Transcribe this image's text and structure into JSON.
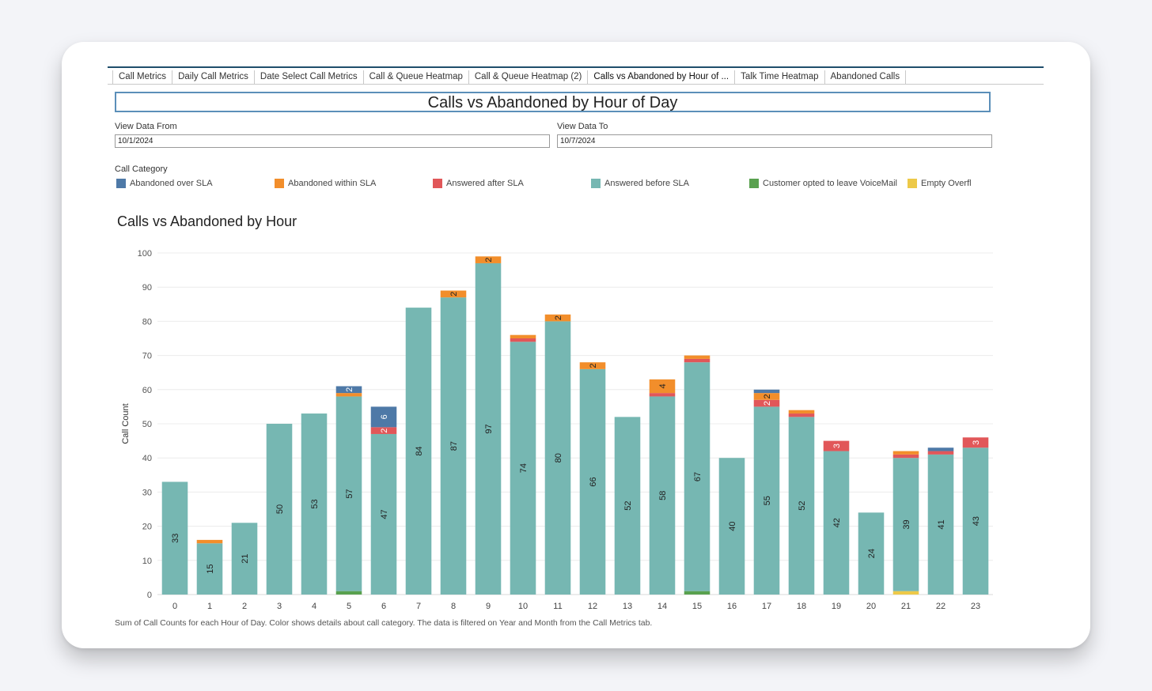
{
  "tabs": [
    {
      "label": "Call Metrics",
      "active": false
    },
    {
      "label": "Daily Call Metrics",
      "active": false
    },
    {
      "label": "Date Select Call Metrics",
      "active": false
    },
    {
      "label": "Call & Queue Heatmap",
      "active": false
    },
    {
      "label": "Call & Queue Heatmap (2)",
      "active": false
    },
    {
      "label": "Calls vs Abandoned by Hour of ...",
      "active": true
    },
    {
      "label": "Talk Time Heatmap",
      "active": false
    },
    {
      "label": "Abandoned Calls",
      "active": false
    }
  ],
  "dashboard_title": "Calls vs Abandoned by Hour of Day",
  "filters": {
    "from_label": "View Data From",
    "from_value": "10/1/2024",
    "to_label": "View Data To",
    "to_value": "10/7/2024"
  },
  "legend": {
    "title": "Call Category",
    "items": [
      {
        "label": "Abandoned over SLA",
        "color": "#4e79a7"
      },
      {
        "label": "Abandoned within SLA",
        "color": "#f28e2b"
      },
      {
        "label": "Answered after SLA",
        "color": "#e15759"
      },
      {
        "label": "Answered before SLA",
        "color": "#76b7b2"
      },
      {
        "label": "Customer opted to leave VoiceMail",
        "color": "#59a14f"
      },
      {
        "label": "Empty Overfl",
        "color": "#edc948"
      }
    ]
  },
  "footnote": "Sum of Call Counts for each Hour of Day.  Color shows details about call category. The data is filtered on Year and Month from the Call Metrics tab.",
  "chart_data": {
    "type": "bar",
    "stacked": true,
    "title": "Calls vs Abandoned by Hour",
    "ylabel": "Call Count",
    "xlabel": "",
    "ylim": [
      0,
      100
    ],
    "yticks": [
      0,
      10,
      20,
      30,
      40,
      50,
      60,
      70,
      80,
      90,
      100
    ],
    "grid": true,
    "categories": [
      "0",
      "1",
      "2",
      "3",
      "4",
      "5",
      "6",
      "7",
      "8",
      "9",
      "10",
      "11",
      "12",
      "13",
      "14",
      "15",
      "16",
      "17",
      "18",
      "19",
      "20",
      "21",
      "22",
      "23"
    ],
    "series": [
      {
        "name": "Empty Overfl",
        "color": "#edc948",
        "values": [
          0,
          0,
          0,
          0,
          0,
          0,
          0,
          0,
          0,
          0,
          0,
          0,
          0,
          0,
          0,
          0,
          0,
          0,
          0,
          0,
          0,
          1,
          0,
          0
        ]
      },
      {
        "name": "Customer opted to leave VoiceMail",
        "color": "#59a14f",
        "values": [
          0,
          0,
          0,
          0,
          0,
          1,
          0,
          0,
          0,
          0,
          0,
          0,
          0,
          0,
          0,
          1,
          0,
          0,
          0,
          0,
          0,
          0,
          0,
          0
        ]
      },
      {
        "name": "Answered before SLA",
        "color": "#76b7b2",
        "values": [
          33,
          15,
          21,
          50,
          53,
          57,
          47,
          84,
          87,
          97,
          74,
          80,
          66,
          52,
          58,
          67,
          40,
          55,
          52,
          42,
          24,
          39,
          41,
          43
        ]
      },
      {
        "name": "Answered after SLA",
        "color": "#e15759",
        "values": [
          0,
          0,
          0,
          0,
          0,
          0,
          2,
          0,
          0,
          0,
          1,
          0,
          0,
          0,
          1,
          1,
          0,
          2,
          1,
          3,
          0,
          1,
          1,
          3
        ]
      },
      {
        "name": "Abandoned within SLA",
        "color": "#f28e2b",
        "values": [
          0,
          1,
          0,
          0,
          0,
          1,
          0,
          0,
          2,
          2,
          1,
          2,
          2,
          0,
          4,
          1,
          0,
          2,
          1,
          0,
          0,
          1,
          0,
          0
        ]
      },
      {
        "name": "Abandoned over SLA",
        "color": "#4e79a7",
        "values": [
          0,
          0,
          0,
          0,
          0,
          2,
          6,
          0,
          0,
          0,
          0,
          0,
          0,
          0,
          0,
          0,
          0,
          1,
          0,
          0,
          0,
          0,
          1,
          0
        ]
      }
    ],
    "data_labels": [
      {
        "category": "0",
        "series": "Answered before SLA",
        "text": "33"
      },
      {
        "category": "1",
        "series": "Answered before SLA",
        "text": "15"
      },
      {
        "category": "2",
        "series": "Answered before SLA",
        "text": "21"
      },
      {
        "category": "3",
        "series": "Answered before SLA",
        "text": "50"
      },
      {
        "category": "4",
        "series": "Answered before SLA",
        "text": "53"
      },
      {
        "category": "5",
        "series": "Answered before SLA",
        "text": "57"
      },
      {
        "category": "5",
        "series": "Abandoned over SLA",
        "text": "2"
      },
      {
        "category": "6",
        "series": "Answered before SLA",
        "text": "47"
      },
      {
        "category": "6",
        "series": "Answered after SLA",
        "text": "2"
      },
      {
        "category": "6",
        "series": "Abandoned over SLA",
        "text": "6"
      },
      {
        "category": "7",
        "series": "Answered before SLA",
        "text": "84"
      },
      {
        "category": "8",
        "series": "Answered before SLA",
        "text": "87"
      },
      {
        "category": "8",
        "series": "Abandoned within SLA",
        "text": "2"
      },
      {
        "category": "9",
        "series": "Answered before SLA",
        "text": "97"
      },
      {
        "category": "9",
        "series": "Abandoned within SLA",
        "text": "2"
      },
      {
        "category": "10",
        "series": "Answered before SLA",
        "text": "74"
      },
      {
        "category": "11",
        "series": "Answered before SLA",
        "text": "80"
      },
      {
        "category": "11",
        "series": "Abandoned within SLA",
        "text": "2"
      },
      {
        "category": "12",
        "series": "Answered before SLA",
        "text": "66"
      },
      {
        "category": "12",
        "series": "Abandoned within SLA",
        "text": "2"
      },
      {
        "category": "13",
        "series": "Answered before SLA",
        "text": "52"
      },
      {
        "category": "14",
        "series": "Answered before SLA",
        "text": "58"
      },
      {
        "category": "14",
        "series": "Abandoned within SLA",
        "text": "4"
      },
      {
        "category": "15",
        "series": "Answered before SLA",
        "text": "67"
      },
      {
        "category": "16",
        "series": "Answered before SLA",
        "text": "40"
      },
      {
        "category": "17",
        "series": "Answered before SLA",
        "text": "55"
      },
      {
        "category": "17",
        "series": "Answered after SLA",
        "text": "2"
      },
      {
        "category": "17",
        "series": "Abandoned within SLA",
        "text": "2"
      },
      {
        "category": "18",
        "series": "Answered before SLA",
        "text": "52"
      },
      {
        "category": "19",
        "series": "Answered before SLA",
        "text": "42"
      },
      {
        "category": "19",
        "series": "Answered after SLA",
        "text": "3"
      },
      {
        "category": "20",
        "series": "Answered before SLA",
        "text": "24"
      },
      {
        "category": "21",
        "series": "Answered before SLA",
        "text": "39"
      },
      {
        "category": "22",
        "series": "Answered before SLA",
        "text": "41"
      },
      {
        "category": "23",
        "series": "Answered before SLA",
        "text": "43"
      },
      {
        "category": "23",
        "series": "Answered after SLA",
        "text": "3"
      }
    ]
  }
}
